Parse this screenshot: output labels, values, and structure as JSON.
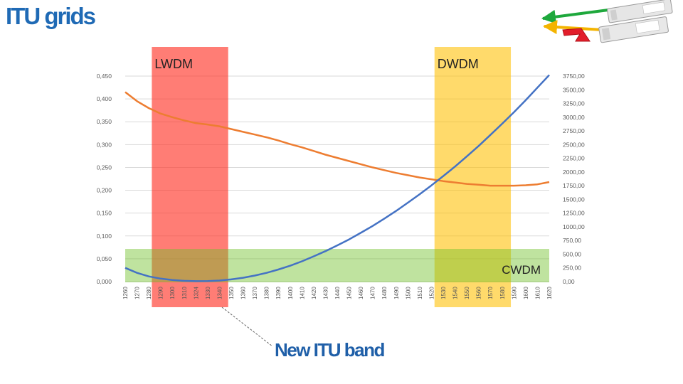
{
  "slide": {
    "title": "ITU grids",
    "new_band_label": "New ITU band"
  },
  "chart_data": {
    "type": "line",
    "categories": [
      "1260",
      "1270",
      "1280",
      "1290",
      "1300",
      "1310",
      "1324",
      "1330",
      "1340",
      "1350",
      "1360",
      "1370",
      "1380",
      "1390",
      "1400",
      "1410",
      "1420",
      "1430",
      "1440",
      "1450",
      "1460",
      "1470",
      "1480",
      "1490",
      "1500",
      "1510",
      "1520",
      "1530",
      "1540",
      "1550",
      "1560",
      "1570",
      "1580",
      "1590",
      "1600",
      "1610",
      "1620"
    ],
    "y_left": {
      "ticks": [
        "0,000",
        "0,050",
        "0,100",
        "0,150",
        "0,200",
        "0,250",
        "0,300",
        "0,350",
        "0,400",
        "0,450"
      ],
      "range": [
        0,
        0.45
      ]
    },
    "y_right": {
      "ticks": [
        "0,00",
        "250,00",
        "500,00",
        "750,00",
        "1000,00",
        "1250,00",
        "1500,00",
        "1750,00",
        "2000,00",
        "2250,00",
        "2500,00",
        "2750,00",
        "3000,00",
        "3250,00",
        "3500,00",
        "3750,00"
      ],
      "range": [
        0,
        3750
      ]
    },
    "series": [
      {
        "axis": "left",
        "color": "#ed7d31",
        "values": [
          0.415,
          0.395,
          0.38,
          0.368,
          0.36,
          0.353,
          0.347,
          0.344,
          0.34,
          0.334,
          0.328,
          0.322,
          0.316,
          0.309,
          0.301,
          0.294,
          0.286,
          0.278,
          0.271,
          0.264,
          0.257,
          0.25,
          0.244,
          0.238,
          0.233,
          0.228,
          0.224,
          0.22,
          0.217,
          0.214,
          0.212,
          0.21,
          0.21,
          0.21,
          0.211,
          0.213,
          0.218
        ]
      },
      {
        "axis": "right",
        "color": "#4472c4",
        "values": [
          250,
          160,
          95,
          55,
          28,
          14,
          8,
          10,
          20,
          40,
          70,
          110,
          160,
          220,
          290,
          370,
          460,
          555,
          660,
          770,
          890,
          1015,
          1150,
          1290,
          1440,
          1595,
          1755,
          1925,
          2100,
          2285,
          2475,
          2675,
          2880,
          3090,
          3310,
          3540,
          3770
        ]
      }
    ],
    "bands": [
      {
        "label": "LWDM",
        "color": "#ff2d20",
        "from": 3,
        "to": 8,
        "opacity": 0.62
      },
      {
        "label": "DWDM",
        "color": "#ffc000",
        "from": 27,
        "to": 32,
        "opacity": 0.58
      },
      {
        "label": "CWDM",
        "color": "#70c12b",
        "from": 0,
        "to": 36,
        "opacity": 0.45,
        "horizontal": true
      }
    ],
    "grid": true
  }
}
